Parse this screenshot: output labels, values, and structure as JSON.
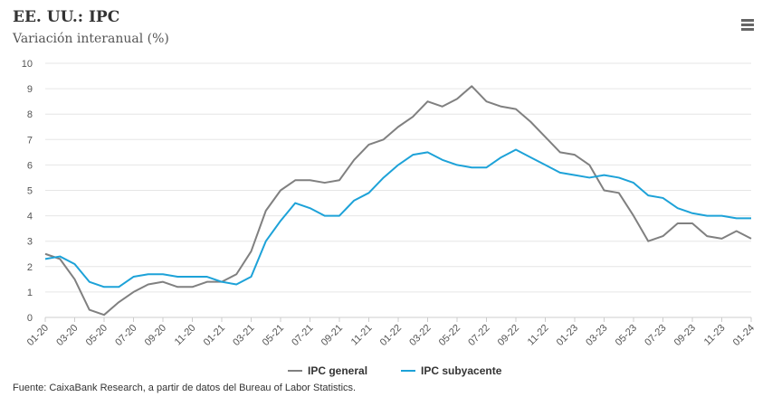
{
  "header": {
    "title": "EE. UU.: IPC",
    "subtitle": "Variación interanual (%)"
  },
  "menu": {
    "icon": "hamburger-menu-icon"
  },
  "footer": {
    "source": "Fuente: CaixaBank Research, a partir de datos del Bureau of Labor Statistics."
  },
  "chart_data": {
    "type": "line",
    "title": "EE. UU.: IPC",
    "subtitle": "Variación interanual (%)",
    "xlabel": "",
    "ylabel": "",
    "ylim": [
      0,
      10
    ],
    "yticks": [
      0,
      1,
      2,
      3,
      4,
      5,
      6,
      7,
      8,
      9,
      10
    ],
    "grid": true,
    "legend": "bottom-center",
    "x": [
      "01-20",
      "02-20",
      "03-20",
      "04-20",
      "05-20",
      "06-20",
      "07-20",
      "08-20",
      "09-20",
      "10-20",
      "11-20",
      "12-20",
      "01-21",
      "02-21",
      "03-21",
      "04-21",
      "05-21",
      "06-21",
      "07-21",
      "08-21",
      "09-21",
      "10-21",
      "11-21",
      "12-21",
      "01-22",
      "02-22",
      "03-22",
      "04-22",
      "05-22",
      "06-22",
      "07-22",
      "08-22",
      "09-22",
      "10-22",
      "11-22",
      "12-22",
      "01-23",
      "02-23",
      "03-23",
      "04-23",
      "05-23",
      "06-23",
      "07-23",
      "08-23",
      "09-23",
      "10-23",
      "11-23",
      "12-23",
      "01-24"
    ],
    "xtick_labels": [
      "01-20",
      "03-20",
      "05-20",
      "07-20",
      "09-20",
      "11-20",
      "01-21",
      "03-21",
      "05-21",
      "07-21",
      "09-21",
      "11-21",
      "01-22",
      "03-22",
      "05-22",
      "07-22",
      "09-22",
      "11-22",
      "01-23",
      "03-23",
      "05-23",
      "07-23",
      "09-23",
      "11-23",
      "01-24"
    ],
    "series": [
      {
        "name": "IPC general",
        "color": "#808080",
        "values": [
          2.5,
          2.3,
          1.5,
          0.3,
          0.1,
          0.6,
          1.0,
          1.3,
          1.4,
          1.2,
          1.2,
          1.4,
          1.4,
          1.7,
          2.6,
          4.2,
          5.0,
          5.4,
          5.4,
          5.3,
          5.4,
          6.2,
          6.8,
          7.0,
          7.5,
          7.9,
          8.5,
          8.3,
          8.6,
          9.1,
          8.5,
          8.3,
          8.2,
          7.7,
          7.1,
          6.5,
          6.4,
          6.0,
          5.0,
          4.9,
          4.0,
          3.0,
          3.2,
          3.7,
          3.7,
          3.2,
          3.1,
          3.4,
          3.1
        ]
      },
      {
        "name": "IPC subyacente",
        "color": "#1da2d8",
        "values": [
          2.3,
          2.4,
          2.1,
          1.4,
          1.2,
          1.2,
          1.6,
          1.7,
          1.7,
          1.6,
          1.6,
          1.6,
          1.4,
          1.3,
          1.6,
          3.0,
          3.8,
          4.5,
          4.3,
          4.0,
          4.0,
          4.6,
          4.9,
          5.5,
          6.0,
          6.4,
          6.5,
          6.2,
          6.0,
          5.9,
          5.9,
          6.3,
          6.6,
          6.3,
          6.0,
          5.7,
          5.6,
          5.5,
          5.6,
          5.5,
          5.3,
          4.8,
          4.7,
          4.3,
          4.1,
          4.0,
          4.0,
          3.9,
          3.9
        ]
      }
    ]
  }
}
